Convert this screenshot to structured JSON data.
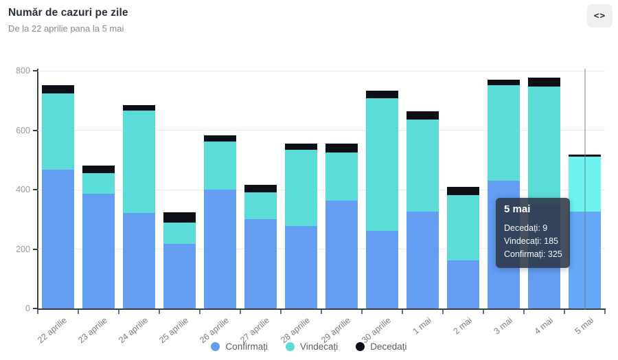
{
  "header": {
    "title": "Număr de cazuri pe zile",
    "subtitle": "De la 22 aprilie pana la 5 mai",
    "code_button_label": "<>"
  },
  "chart_data": {
    "type": "bar",
    "stacked": true,
    "title": "Număr de cazuri pe zile",
    "categories": [
      "22 aprilie",
      "23 aprilie",
      "24 aprilie",
      "25 aprilie",
      "26 aprilie",
      "27 aprilie",
      "28 aprilie",
      "29 aprilie",
      "30 aprilie",
      "1 mai",
      "2 mai",
      "3 mai",
      "4 mai",
      "5 mai"
    ],
    "series": [
      {
        "name": "Confirmați",
        "key": "confirmati",
        "color": "#639ef3",
        "highlight_color": "#65aaf8",
        "values": [
          468,
          386,
          321,
          218,
          401,
          301,
          277,
          362,
          262,
          326,
          163,
          431,
          349,
          325
        ]
      },
      {
        "name": "Vindecați",
        "key": "vindecati",
        "color": "#5cdcd9",
        "highlight_color": "#6ff3f1",
        "values": [
          256,
          70,
          344,
          72,
          162,
          90,
          257,
          163,
          446,
          311,
          219,
          321,
          399,
          185
        ]
      },
      {
        "name": "Decedați",
        "key": "decedati",
        "color": "#0d1117",
        "highlight_color": "#0d1117",
        "values": [
          28,
          24,
          19,
          33,
          20,
          26,
          21,
          30,
          24,
          27,
          27,
          17,
          29,
          9
        ]
      }
    ],
    "ylim": [
      0,
      800
    ],
    "yticks": [
      0,
      200,
      400,
      600,
      800
    ],
    "grid": "horizontal",
    "legend_position": "bottom",
    "highlighted_category": "5 mai"
  },
  "tooltip": {
    "title": "5 mai",
    "rows": [
      {
        "text": "Decedați: 9"
      },
      {
        "text": "Vindecați: 185"
      },
      {
        "text": "Confirmați: 325"
      }
    ]
  },
  "colors": {
    "accent_blue": "#639ef3",
    "accent_teal": "#5cdcd9",
    "accent_black": "#0d1117",
    "tooltip_bg": "rgba(44,55,70,0.88)"
  }
}
